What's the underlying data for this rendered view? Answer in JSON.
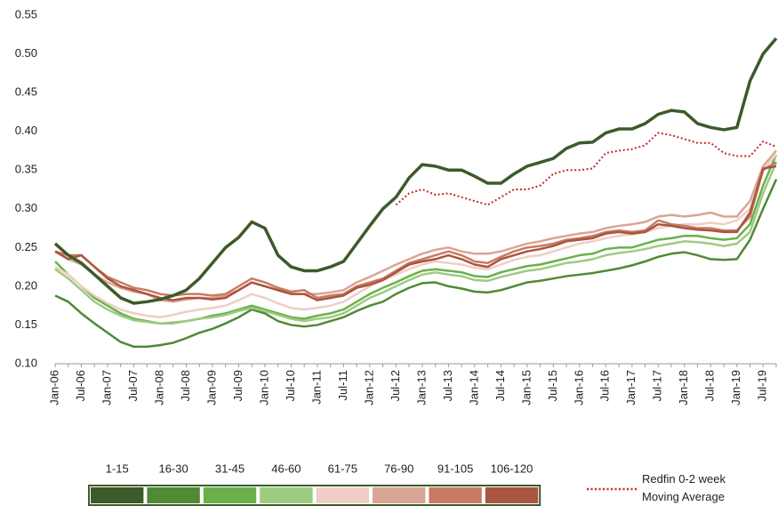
{
  "chart_data": {
    "type": "line",
    "categories": [
      "Jan-06",
      null,
      "Jul-06",
      null,
      "Jan-07",
      null,
      "Jul-07",
      null,
      "Jan-08",
      null,
      "Jul-08",
      null,
      "Jan-09",
      null,
      "Jul-09",
      null,
      "Jan-10",
      null,
      "Jul-10",
      null,
      "Jan-11",
      null,
      "Jul-11",
      null,
      "Jan-12",
      null,
      "Jul-12",
      null,
      "Jan-13",
      null,
      "Jul-13",
      null,
      "Jan-14",
      null,
      "Jul-14",
      null,
      "Jan-15",
      null,
      "Jul-15",
      null,
      "Jan-16",
      null,
      "Jul-16",
      null,
      "Jan-17",
      null,
      "Jul-17",
      null,
      "Jan-18",
      null,
      "Jul-18",
      null,
      "Jan-19",
      null,
      "Jul-19",
      null
    ],
    "ylim": [
      0.1,
      0.55
    ],
    "yticks": [
      {
        "value": 0.1,
        "label": "0.10"
      },
      {
        "value": 0.15,
        "label": "0.15"
      },
      {
        "value": 0.2,
        "label": "0.20"
      },
      {
        "value": 0.25,
        "label": "0.25"
      },
      {
        "value": 0.3,
        "label": "0.30"
      },
      {
        "value": 0.35,
        "label": "0.35"
      },
      {
        "value": 0.4,
        "label": "0.40"
      },
      {
        "value": 0.45,
        "label": "0.45"
      },
      {
        "value": 0.5,
        "label": "0.50"
      },
      {
        "value": 0.55,
        "label": "0.55"
      }
    ],
    "grid": false,
    "series": [
      {
        "name": "1-15",
        "color": "#3d5a2a",
        "line_style": "solid",
        "values": [
          0.255,
          0.24,
          0.23,
          0.215,
          0.2,
          0.185,
          0.178,
          0.18,
          0.183,
          0.188,
          0.195,
          0.21,
          0.23,
          0.25,
          0.263,
          0.283,
          0.275,
          0.24,
          0.225,
          0.22,
          0.22,
          0.225,
          0.232,
          0.255,
          0.278,
          0.3,
          0.315,
          0.34,
          0.357,
          0.355,
          0.35,
          0.35,
          0.342,
          0.333,
          0.333,
          0.345,
          0.355,
          0.36,
          0.365,
          0.378,
          0.385,
          0.386,
          0.398,
          0.403,
          0.403,
          0.41,
          0.422,
          0.427,
          0.425,
          0.41,
          0.405,
          0.402,
          0.405,
          0.465,
          0.5,
          0.52
        ]
      },
      {
        "name": "16-30",
        "color": "#4f8a35",
        "line_style": "solid",
        "values": [
          0.188,
          0.18,
          0.165,
          0.152,
          0.14,
          0.128,
          0.122,
          0.122,
          0.124,
          0.127,
          0.133,
          0.14,
          0.145,
          0.152,
          0.16,
          0.17,
          0.165,
          0.155,
          0.15,
          0.148,
          0.15,
          0.155,
          0.16,
          0.168,
          0.175,
          0.18,
          0.19,
          0.198,
          0.204,
          0.205,
          0.2,
          0.197,
          0.193,
          0.192,
          0.195,
          0.2,
          0.205,
          0.207,
          0.21,
          0.213,
          0.215,
          0.217,
          0.22,
          0.223,
          0.227,
          0.232,
          0.238,
          0.242,
          0.244,
          0.24,
          0.235,
          0.234,
          0.235,
          0.26,
          0.3,
          0.338
        ]
      },
      {
        "name": "31-45",
        "color": "#6bb04a",
        "line_style": "solid",
        "values": [
          0.232,
          0.215,
          0.2,
          0.185,
          0.175,
          0.165,
          0.158,
          0.155,
          0.152,
          0.153,
          0.155,
          0.158,
          0.162,
          0.165,
          0.17,
          0.175,
          0.17,
          0.165,
          0.16,
          0.158,
          0.162,
          0.165,
          0.17,
          0.18,
          0.19,
          0.198,
          0.205,
          0.213,
          0.22,
          0.222,
          0.22,
          0.218,
          0.213,
          0.212,
          0.218,
          0.222,
          0.226,
          0.228,
          0.232,
          0.236,
          0.24,
          0.242,
          0.248,
          0.25,
          0.25,
          0.255,
          0.26,
          0.262,
          0.265,
          0.265,
          0.262,
          0.26,
          0.262,
          0.28,
          0.33,
          0.37
        ]
      },
      {
        "name": "46-60",
        "color": "#9dcb80",
        "line_style": "solid",
        "values": [
          0.222,
          0.21,
          0.195,
          0.18,
          0.17,
          0.162,
          0.156,
          0.154,
          0.152,
          0.152,
          0.155,
          0.158,
          0.16,
          0.163,
          0.168,
          0.172,
          0.168,
          0.163,
          0.158,
          0.155,
          0.158,
          0.16,
          0.165,
          0.175,
          0.185,
          0.192,
          0.2,
          0.208,
          0.215,
          0.218,
          0.215,
          0.213,
          0.208,
          0.207,
          0.212,
          0.216,
          0.22,
          0.222,
          0.226,
          0.23,
          0.232,
          0.235,
          0.24,
          0.243,
          0.245,
          0.248,
          0.252,
          0.255,
          0.258,
          0.257,
          0.255,
          0.252,
          0.255,
          0.27,
          0.32,
          0.36
        ]
      },
      {
        "name": "61-75",
        "color": "#efcfc5",
        "line_style": "solid",
        "values": [
          0.225,
          0.215,
          0.2,
          0.188,
          0.178,
          0.17,
          0.165,
          0.162,
          0.16,
          0.163,
          0.167,
          0.17,
          0.172,
          0.175,
          0.182,
          0.19,
          0.185,
          0.178,
          0.172,
          0.17,
          0.172,
          0.175,
          0.18,
          0.19,
          0.2,
          0.208,
          0.215,
          0.222,
          0.228,
          0.232,
          0.23,
          0.228,
          0.224,
          0.222,
          0.228,
          0.234,
          0.238,
          0.24,
          0.245,
          0.25,
          0.255,
          0.258,
          0.262,
          0.265,
          0.267,
          0.27,
          0.275,
          0.278,
          0.28,
          0.28,
          0.282,
          0.28,
          0.285,
          0.3,
          0.35,
          0.37
        ]
      },
      {
        "name": "76-90",
        "color": "#d9a594",
        "line_style": "solid",
        "values": [
          0.245,
          0.235,
          0.228,
          0.215,
          0.205,
          0.198,
          0.193,
          0.19,
          0.182,
          0.18,
          0.183,
          0.185,
          0.185,
          0.188,
          0.195,
          0.205,
          0.2,
          0.195,
          0.19,
          0.19,
          0.19,
          0.192,
          0.195,
          0.205,
          0.212,
          0.22,
          0.228,
          0.235,
          0.242,
          0.247,
          0.25,
          0.245,
          0.242,
          0.242,
          0.245,
          0.25,
          0.255,
          0.258,
          0.262,
          0.265,
          0.268,
          0.27,
          0.275,
          0.278,
          0.28,
          0.283,
          0.29,
          0.292,
          0.29,
          0.292,
          0.295,
          0.29,
          0.29,
          0.31,
          0.355,
          0.375
        ]
      },
      {
        "name": "91-105",
        "color": "#c97a63",
        "line_style": "solid",
        "values": [
          0.245,
          0.24,
          0.24,
          0.225,
          0.212,
          0.205,
          0.198,
          0.195,
          0.19,
          0.188,
          0.19,
          0.19,
          0.188,
          0.19,
          0.2,
          0.21,
          0.205,
          0.198,
          0.193,
          0.195,
          0.185,
          0.188,
          0.19,
          0.2,
          0.205,
          0.21,
          0.22,
          0.23,
          0.235,
          0.24,
          0.245,
          0.24,
          0.232,
          0.23,
          0.238,
          0.245,
          0.25,
          0.252,
          0.255,
          0.26,
          0.262,
          0.265,
          0.27,
          0.272,
          0.27,
          0.272,
          0.285,
          0.28,
          0.278,
          0.275,
          0.275,
          0.272,
          0.272,
          0.29,
          0.35,
          0.36
        ]
      },
      {
        "name": "106-120",
        "color": "#a9553f",
        "line_style": "solid",
        "values": [
          0.245,
          0.235,
          0.24,
          0.225,
          0.21,
          0.2,
          0.195,
          0.19,
          0.185,
          0.182,
          0.185,
          0.185,
          0.183,
          0.185,
          0.195,
          0.205,
          0.2,
          0.195,
          0.19,
          0.19,
          0.182,
          0.185,
          0.188,
          0.198,
          0.202,
          0.208,
          0.218,
          0.228,
          0.232,
          0.235,
          0.24,
          0.235,
          0.228,
          0.225,
          0.235,
          0.24,
          0.245,
          0.248,
          0.252,
          0.258,
          0.26,
          0.262,
          0.268,
          0.27,
          0.268,
          0.27,
          0.28,
          0.278,
          0.275,
          0.273,
          0.272,
          0.27,
          0.27,
          0.295,
          0.352,
          0.355
        ]
      },
      {
        "name": "Redfin 0-2 week Moving Average",
        "color": "#c0282b",
        "line_style": "dotted",
        "values": [
          null,
          null,
          null,
          null,
          null,
          null,
          null,
          null,
          null,
          null,
          null,
          null,
          null,
          null,
          null,
          null,
          null,
          null,
          null,
          null,
          null,
          null,
          null,
          null,
          null,
          null,
          0.305,
          0.32,
          0.325,
          0.318,
          0.32,
          0.315,
          0.31,
          0.305,
          0.315,
          0.325,
          0.325,
          0.33,
          0.345,
          0.35,
          0.35,
          0.352,
          0.372,
          0.375,
          0.377,
          0.382,
          0.398,
          0.395,
          0.39,
          0.385,
          0.385,
          0.372,
          0.368,
          0.368,
          0.387,
          0.38
        ]
      }
    ]
  }
}
